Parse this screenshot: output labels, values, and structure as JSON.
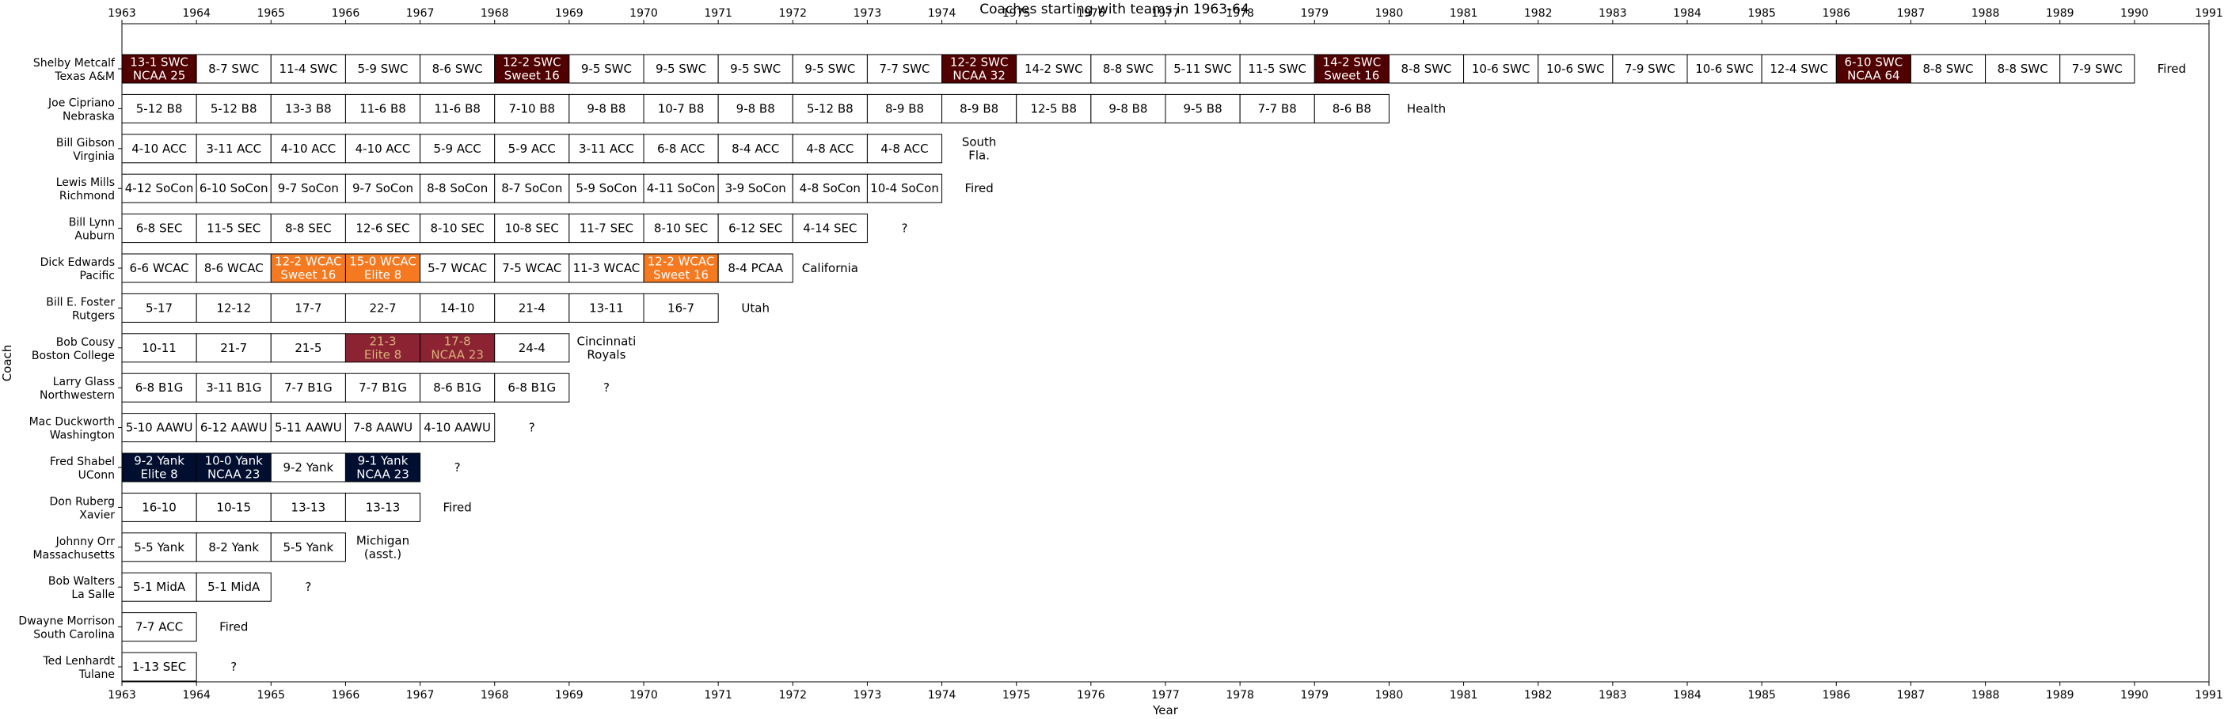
{
  "chart_data": {
    "type": "table",
    "title": "Coaches starting with teams in 1963-64",
    "xlabel": "Year",
    "ylabel": "Coach",
    "xlim": [
      1963,
      1991
    ],
    "x_ticks": [
      1963,
      1964,
      1965,
      1966,
      1967,
      1968,
      1969,
      1970,
      1971,
      1972,
      1973,
      1974,
      1975,
      1976,
      1977,
      1978,
      1979,
      1980,
      1981,
      1982,
      1983,
      1984,
      1985,
      1986,
      1987,
      1988,
      1989,
      1990,
      1991
    ],
    "colors": {
      "texas_am": "#500000",
      "pacific": "#f47920",
      "boston_college": "#8b2332",
      "bc_text": "#d9b27a",
      "uconn": "#000e2f",
      "plain": "#ffffff"
    },
    "coaches": [
      {
        "name": "Shelby Metcalf",
        "team": "Texas A&M",
        "color": "texas_am",
        "note": "Fired",
        "seasons": [
          "13-1 SWC|NCAA 25",
          "8-7 SWC",
          "11-4 SWC",
          "5-9 SWC",
          "8-6 SWC",
          "12-2 SWC|Sweet 16",
          "9-5 SWC",
          "9-5 SWC",
          "9-5 SWC",
          "9-5 SWC",
          "7-7 SWC",
          "12-2 SWC|NCAA 32",
          "14-2 SWC",
          "8-8 SWC",
          "5-11 SWC",
          "11-5 SWC",
          "14-2 SWC|Sweet 16",
          "8-8 SWC",
          "10-6 SWC",
          "10-6 SWC",
          "7-9 SWC",
          "10-6 SWC",
          "12-4 SWC",
          "6-10 SWC|NCAA 64",
          "8-8 SWC",
          "8-8 SWC",
          "7-9 SWC"
        ],
        "highlighted": [
          0,
          5,
          11,
          16,
          23
        ]
      },
      {
        "name": "Joe Cipriano",
        "team": "Nebraska",
        "color": "plain",
        "note": "Health",
        "seasons": [
          "5-12 B8",
          "5-12 B8",
          "13-3 B8",
          "11-6 B8",
          "11-6 B8",
          "7-10 B8",
          "9-8 B8",
          "10-7 B8",
          "9-8 B8",
          "5-12 B8",
          "8-9 B8",
          "8-9 B8",
          "12-5 B8",
          "9-8 B8",
          "9-5 B8",
          "7-7 B8",
          "8-6 B8"
        ],
        "highlighted": []
      },
      {
        "name": "Bill Gibson",
        "team": "Virginia",
        "color": "plain",
        "note": "South|Fla.",
        "seasons": [
          "4-10 ACC",
          "3-11 ACC",
          "4-10 ACC",
          "4-10 ACC",
          "5-9 ACC",
          "5-9 ACC",
          "3-11 ACC",
          "6-8 ACC",
          "8-4 ACC",
          "4-8 ACC",
          "4-8 ACC"
        ],
        "highlighted": []
      },
      {
        "name": "Lewis Mills",
        "team": "Richmond",
        "color": "plain",
        "note": "Fired",
        "seasons": [
          "4-12 SoCon",
          "6-10 SoCon",
          "9-7 SoCon",
          "9-7 SoCon",
          "8-8 SoCon",
          "8-7 SoCon",
          "5-9 SoCon",
          "4-11 SoCon",
          "3-9 SoCon",
          "4-8 SoCon",
          "10-4 SoCon"
        ],
        "highlighted": []
      },
      {
        "name": "Bill Lynn",
        "team": "Auburn",
        "color": "plain",
        "note": "?",
        "seasons": [
          "6-8 SEC",
          "11-5 SEC",
          "8-8 SEC",
          "12-6 SEC",
          "8-10 SEC",
          "10-8 SEC",
          "11-7 SEC",
          "8-10 SEC",
          "6-12 SEC",
          "4-14 SEC"
        ],
        "highlighted": []
      },
      {
        "name": "Dick Edwards",
        "team": "Pacific",
        "color": "pacific",
        "note": "California",
        "seasons": [
          "6-6 WCAC",
          "8-6 WCAC",
          "12-2 WCAC|Sweet 16",
          "15-0 WCAC|Elite 8",
          "5-7 WCAC",
          "7-5 WCAC",
          "11-3 WCAC",
          "12-2 WCAC|Sweet 16",
          "8-4 PCAA"
        ],
        "highlighted": [
          2,
          3,
          7
        ]
      },
      {
        "name": "Bill E. Foster",
        "team": "Rutgers",
        "color": "plain",
        "note": "Utah",
        "seasons": [
          "5-17",
          "12-12",
          "17-7",
          "22-7",
          "14-10",
          "21-4",
          "13-11",
          "16-7"
        ],
        "highlighted": []
      },
      {
        "name": "Bob Cousy",
        "team": "Boston College",
        "color": "boston_college",
        "note": "Cincinnati|Royals",
        "seasons": [
          "10-11",
          "21-7",
          "21-5",
          "21-3|Elite 8",
          "17-8|NCAA 23",
          "24-4"
        ],
        "highlighted": [
          3,
          4
        ]
      },
      {
        "name": "Larry Glass",
        "team": "Northwestern",
        "color": "plain",
        "note": "?",
        "seasons": [
          "6-8 B1G",
          "3-11 B1G",
          "7-7 B1G",
          "7-7 B1G",
          "8-6 B1G",
          "6-8 B1G"
        ],
        "highlighted": []
      },
      {
        "name": "Mac Duckworth",
        "team": "Washington",
        "color": "plain",
        "note": "?",
        "seasons": [
          "5-10 AAWU",
          "6-12 AAWU",
          "5-11 AAWU",
          "7-8 AAWU",
          "4-10 AAWU"
        ],
        "highlighted": []
      },
      {
        "name": "Fred Shabel",
        "team": "UConn",
        "color": "uconn",
        "note": "?",
        "seasons": [
          "9-2 Yank|Elite 8",
          "10-0 Yank|NCAA 23",
          "9-2 Yank",
          "9-1 Yank|NCAA 23"
        ],
        "highlighted": [
          0,
          1,
          3
        ]
      },
      {
        "name": "Don Ruberg",
        "team": "Xavier",
        "color": "plain",
        "note": "Fired",
        "seasons": [
          "16-10",
          "10-15",
          "13-13",
          "13-13"
        ],
        "highlighted": []
      },
      {
        "name": "Johnny Orr",
        "team": "Massachusetts",
        "color": "plain",
        "note": "Michigan|(asst.)",
        "seasons": [
          "5-5 Yank",
          "8-2 Yank",
          "5-5 Yank"
        ],
        "highlighted": []
      },
      {
        "name": "Bob Walters",
        "team": "La Salle",
        "color": "plain",
        "note": "?",
        "seasons": [
          "5-1 MidA",
          "5-1 MidA"
        ],
        "highlighted": []
      },
      {
        "name": "Dwayne Morrison",
        "team": "South Carolina",
        "color": "plain",
        "note": "Fired",
        "seasons": [
          "7-7 ACC"
        ],
        "highlighted": []
      },
      {
        "name": "Ted Lenhardt",
        "team": "Tulane",
        "color": "plain",
        "note": "?",
        "seasons": [
          "1-13 SEC"
        ],
        "highlighted": []
      }
    ]
  }
}
